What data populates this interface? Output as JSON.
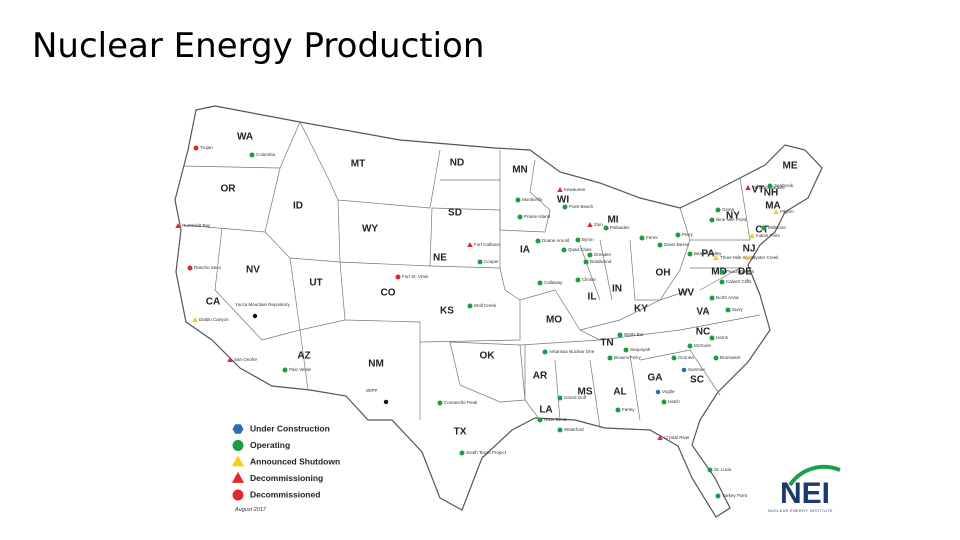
{
  "title": "Nuclear Energy Production",
  "states": [
    "WA",
    "OR",
    "ID",
    "MT",
    "WY",
    "ND",
    "SD",
    "NE",
    "MN",
    "WI",
    "MI",
    "IA",
    "IL",
    "IN",
    "OH",
    "NY",
    "VT",
    "NH",
    "ME",
    "MA",
    "CT",
    "NJ",
    "PA",
    "MD",
    "DE",
    "WV",
    "VA",
    "KY",
    "TN",
    "NC",
    "SC",
    "GA",
    "AL",
    "MS",
    "LA",
    "AR",
    "MO",
    "KS",
    "OK",
    "TX",
    "NM",
    "AZ",
    "UT",
    "NV",
    "CO",
    "CA"
  ],
  "legend": [
    {
      "label": "Under Construction",
      "color": "#2b6cb5",
      "shape": "hexagon"
    },
    {
      "label": "Operating",
      "color": "#1f9a45",
      "shape": "circle"
    },
    {
      "label": "Announced Shutdown",
      "color": "#f1cf1a",
      "shape": "triangle"
    },
    {
      "label": "Decommissioning",
      "color": "#e0282e",
      "shape": "triangle"
    },
    {
      "label": "Decommissioned",
      "color": "#e0282e",
      "shape": "circle"
    }
  ],
  "plants": [
    {
      "name": "Trojan",
      "status": "Decommissioned"
    },
    {
      "name": "Columbia",
      "status": "Operating"
    },
    {
      "name": "Humboldt Bay",
      "status": "Decommissioning"
    },
    {
      "name": "Rancho Seco",
      "status": "Decommissioned"
    },
    {
      "name": "Diablo Canyon",
      "status": "Announced Shutdown"
    },
    {
      "name": "San Onofre",
      "status": "Decommissioning"
    },
    {
      "name": "Palo Verde",
      "status": "Operating"
    },
    {
      "name": "Yucca Mountain Repository",
      "status": ""
    },
    {
      "name": "Fort St. Vrain",
      "status": "Decommissioned"
    },
    {
      "name": "WIPP",
      "status": ""
    },
    {
      "name": "Wolf Creek",
      "status": "Operating"
    },
    {
      "name": "Callaway",
      "status": "Operating"
    },
    {
      "name": "Cooper",
      "status": "Operating"
    },
    {
      "name": "Fort Calhoun",
      "status": "Decommissioning"
    },
    {
      "name": "Monticello",
      "status": "Operating"
    },
    {
      "name": "Prairie Island",
      "status": "Operating"
    },
    {
      "name": "Kewaunee",
      "status": "Decommissioning"
    },
    {
      "name": "Point Beach",
      "status": "Operating"
    },
    {
      "name": "Duane Arnold",
      "status": "Operating"
    },
    {
      "name": "Quad Cities",
      "status": "Operating"
    },
    {
      "name": "Byron",
      "status": "Operating"
    },
    {
      "name": "Zion",
      "status": "Decommissioning"
    },
    {
      "name": "Dresden",
      "status": "Operating"
    },
    {
      "name": "Braidwood",
      "status": "Operating"
    },
    {
      "name": "Clinton",
      "status": "Operating"
    },
    {
      "name": "Palisades",
      "status": "Operating"
    },
    {
      "name": "Fermi",
      "status": "Operating"
    },
    {
      "name": "Davis-Besse",
      "status": "Operating"
    },
    {
      "name": "Perry",
      "status": "Operating"
    },
    {
      "name": "Beaver Valley",
      "status": "Operating"
    },
    {
      "name": "Three Mile Island",
      "status": "Announced Shutdown"
    },
    {
      "name": "Peach Bottom",
      "status": "Operating"
    },
    {
      "name": "Oyster Creek",
      "status": "Announced Shutdown"
    },
    {
      "name": "Indian Point",
      "status": "Announced Shutdown"
    },
    {
      "name": "Ginna",
      "status": "Operating"
    },
    {
      "name": "Nine Mile Point",
      "status": "Operating"
    },
    {
      "name": "Vermont Yankee",
      "status": "Decommissioning"
    },
    {
      "name": "Seabrook",
      "status": "Operating"
    },
    {
      "name": "Pilgrim",
      "status": "Announced Shutdown"
    },
    {
      "name": "Millstone",
      "status": "Operating"
    },
    {
      "name": "Calvert Cliffs",
      "status": "Operating"
    },
    {
      "name": "North Anna",
      "status": "Operating"
    },
    {
      "name": "Surry",
      "status": "Operating"
    },
    {
      "name": "Harris",
      "status": "Operating"
    },
    {
      "name": "Brunswick",
      "status": "Operating"
    },
    {
      "name": "McGuire",
      "status": "Operating"
    },
    {
      "name": "Oconee",
      "status": "Operating"
    },
    {
      "name": "Summer",
      "status": "Under Construction"
    },
    {
      "name": "Vogtle",
      "status": "Under Construction"
    },
    {
      "name": "Hatch",
      "status": "Operating"
    },
    {
      "name": "Watts Bar",
      "status": "Operating"
    },
    {
      "name": "Sequoyah",
      "status": "Operating"
    },
    {
      "name": "Browns Ferry",
      "status": "Operating"
    },
    {
      "name": "Farley",
      "status": "Operating"
    },
    {
      "name": "Arkansas Nuclear One",
      "status": "Operating"
    },
    {
      "name": "Grand Gulf",
      "status": "Operating"
    },
    {
      "name": "River Bend",
      "status": "Operating"
    },
    {
      "name": "Waterford",
      "status": "Operating"
    },
    {
      "name": "Comanche Peak",
      "status": "Operating"
    },
    {
      "name": "South Texas Project",
      "status": "Operating"
    },
    {
      "name": "Crystal River",
      "status": "Decommissioning"
    },
    {
      "name": "St. Lucie",
      "status": "Operating"
    },
    {
      "name": "Turkey Point",
      "status": "Operating"
    }
  ],
  "footnote": "August 2017",
  "logo": {
    "mark": "NEI",
    "caption": "NUCLEAR ENERGY INSTITUTE"
  }
}
